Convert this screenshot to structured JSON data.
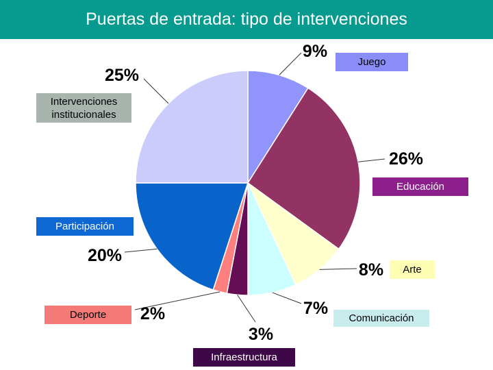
{
  "title": "Puertas de entrada: tipo de intervenciones",
  "chart_data": {
    "type": "pie",
    "slices": [
      {
        "label": "Juego",
        "value": 9,
        "pct_label": "9%",
        "color": "#9094fb"
      },
      {
        "label": "Educación",
        "value": 26,
        "pct_label": "26%",
        "color": "#933364"
      },
      {
        "label": "Arte",
        "value": 8,
        "pct_label": "8%",
        "color": "#ffffcc"
      },
      {
        "label": "Comunicación",
        "value": 7,
        "pct_label": "7%",
        "color": "#cbffff"
      },
      {
        "label": "Infraestructura",
        "value": 3,
        "pct_label": "3%",
        "color": "#650e55"
      },
      {
        "label": "Deporte",
        "value": 2,
        "pct_label": "2%",
        "color": "#fe807e"
      },
      {
        "label": "Participación",
        "value": 20,
        "pct_label": "20%",
        "color": "#0864cb"
      },
      {
        "label": "Intervenciones institucionales",
        "value": 25,
        "pct_label": "25%",
        "color": "#ccccfc"
      }
    ]
  },
  "legend": {
    "juego": "Juego",
    "institucional": "Intervenciones institucionales",
    "educacion": "Educación",
    "participacion": "Participación",
    "arte": "Arte",
    "deporte": "Deporte",
    "comunicacion": "Comunicación",
    "infraestructura": "Infraestructura"
  }
}
